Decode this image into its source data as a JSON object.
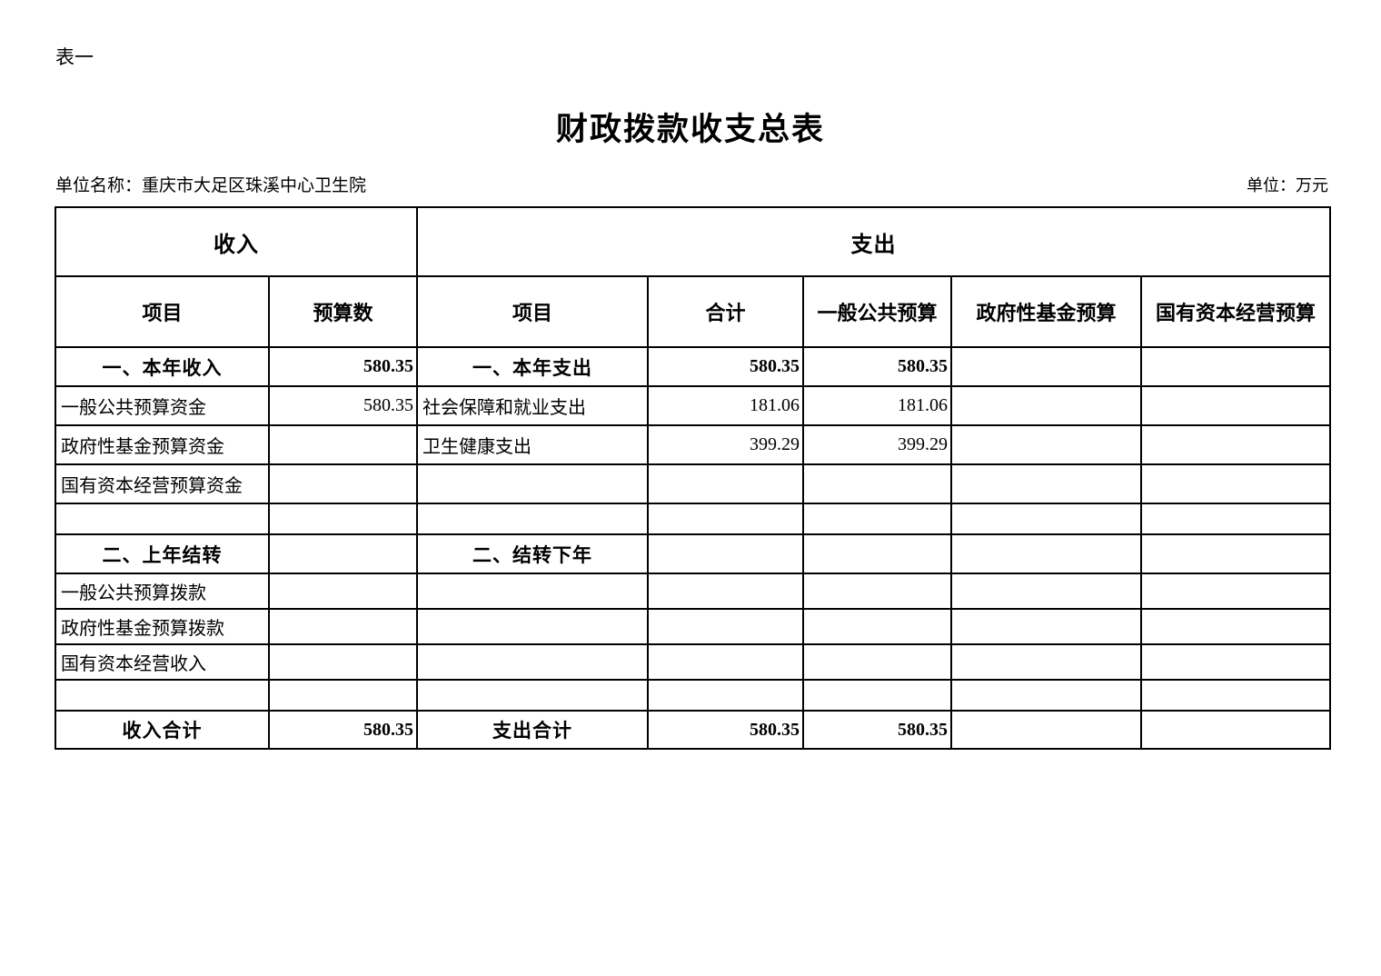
{
  "colors": {
    "text": "#000000",
    "border": "#000000",
    "background": "#ffffff"
  },
  "page": {
    "sheet_tag": "表一",
    "title": "财政拨款收支总表",
    "unit_name": "单位名称：重庆市大足区珠溪中心卫生院",
    "unit_of_measure": "单位：万元"
  },
  "table": {
    "group_headers": {
      "income": "收入",
      "expense": "支出"
    },
    "column_headers": [
      "项目",
      "预算数",
      "项目",
      "合计",
      "一般公共预算",
      "政府性基金预算",
      "国有资本经营预算"
    ],
    "rows": [
      {
        "type": "section",
        "cells": [
          "一、本年收入",
          "580.35",
          "一、本年支出",
          "580.35",
          "580.35",
          "",
          ""
        ]
      },
      {
        "type": "detail",
        "cells": [
          "一般公共预算资金",
          "580.35",
          "社会保障和就业支出",
          "181.06",
          "181.06",
          "",
          ""
        ]
      },
      {
        "type": "detail",
        "cells": [
          "政府性基金预算资金",
          "",
          "卫生健康支出",
          "399.29",
          "399.29",
          "",
          ""
        ]
      },
      {
        "type": "detail",
        "cells": [
          "国有资本经营预算资金",
          "",
          "",
          "",
          "",
          "",
          ""
        ]
      },
      {
        "type": "empty",
        "cells": [
          "",
          "",
          "",
          "",
          "",
          "",
          ""
        ]
      },
      {
        "type": "section",
        "cells": [
          "二、上年结转",
          "",
          "二、结转下年",
          "",
          "",
          "",
          ""
        ]
      },
      {
        "type": "detail",
        "cells": [
          "一般公共预算拨款",
          "",
          "",
          "",
          "",
          "",
          ""
        ]
      },
      {
        "type": "detail",
        "cells": [
          "政府性基金预算拨款",
          "",
          "",
          "",
          "",
          "",
          ""
        ]
      },
      {
        "type": "detail",
        "cells": [
          "国有资本经营收入",
          "",
          "",
          "",
          "",
          "",
          ""
        ]
      },
      {
        "type": "empty",
        "cells": [
          "",
          "",
          "",
          "",
          "",
          "",
          ""
        ]
      },
      {
        "type": "total",
        "cells": [
          "收入合计",
          "580.35",
          "支出合计",
          "580.35",
          "580.35",
          "",
          ""
        ]
      }
    ]
  }
}
